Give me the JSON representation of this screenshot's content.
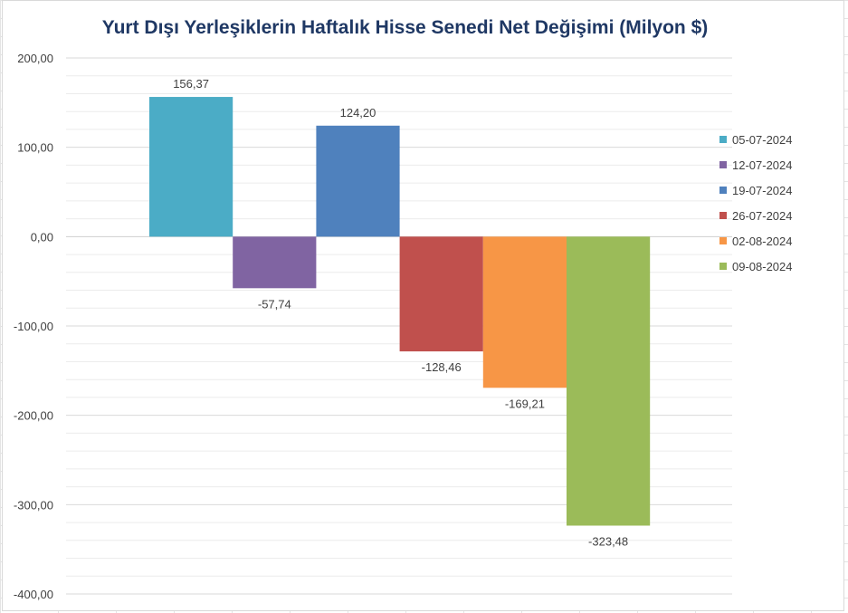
{
  "chart_data": {
    "type": "bar",
    "title": "Yurt Dışı Yerleşiklerin Haftalık Hisse Senedi Net Değişimi (Milyon $)",
    "xlabel": "",
    "ylabel": "",
    "ylim": [
      -400,
      200
    ],
    "yticks": [
      200,
      100,
      0,
      -100,
      -200,
      -300,
      -400
    ],
    "ytick_labels": [
      "200,00",
      "100,00",
      "0,00",
      "-100,00",
      "-200,00",
      "-300,00",
      "-400,00"
    ],
    "gridlines": true,
    "legend_position": "right",
    "series": [
      {
        "name": "05-07-2024",
        "values": [
          156.37
        ],
        "label": "156,37",
        "color": "#4bacc6"
      },
      {
        "name": "12-07-2024",
        "values": [
          -57.74
        ],
        "label": "-57,74",
        "color": "#8064a2"
      },
      {
        "name": "19-07-2024",
        "values": [
          124.2
        ],
        "label": "124,20",
        "color": "#4f81bd"
      },
      {
        "name": "26-07-2024",
        "values": [
          -128.46
        ],
        "label": "-128,46",
        "color": "#c0504d"
      },
      {
        "name": "02-08-2024",
        "values": [
          -169.21
        ],
        "label": "-169,21",
        "color": "#f79646"
      },
      {
        "name": "09-08-2024",
        "values": [
          -323.48
        ],
        "label": "-323,48",
        "color": "#9bbb59"
      }
    ]
  }
}
